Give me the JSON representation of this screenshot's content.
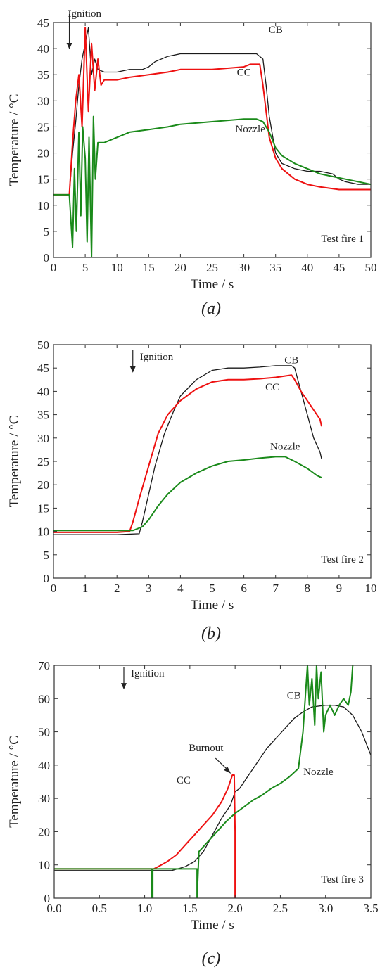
{
  "figure": {
    "captions": [
      "(a)",
      "(b)",
      "(c)"
    ]
  },
  "chart_data": [
    {
      "type": "line",
      "title": "",
      "xlabel": "Time / s",
      "ylabel": "Temperature / °C",
      "xlim": [
        0,
        50
      ],
      "ylim": [
        0,
        45
      ],
      "xticks": [
        0,
        5,
        10,
        15,
        20,
        25,
        30,
        35,
        40,
        45,
        50
      ],
      "yticks": [
        0,
        5,
        10,
        15,
        20,
        25,
        30,
        35,
        40,
        45
      ],
      "grid": false,
      "annotations": {
        "ignition": {
          "label": "Ignition",
          "x": 2.5,
          "y": 45
        },
        "test_fire": "Test fire 1"
      },
      "series": [
        {
          "name": "CB",
          "color": "#1a1a1a",
          "label_at": [
            35,
            43
          ],
          "x": [
            0,
            2.5,
            3,
            3.5,
            4,
            4.5,
            5,
            5.5,
            6,
            6.5,
            7,
            8,
            10,
            12,
            14,
            15,
            16,
            18,
            20,
            22,
            25,
            28,
            30,
            31,
            32,
            33,
            33.5,
            34,
            35,
            36,
            38,
            40,
            42,
            44,
            45,
            46,
            48,
            50
          ],
          "y": [
            12,
            12,
            20,
            26,
            33,
            38,
            41,
            44,
            35,
            38,
            36,
            35.5,
            35.5,
            36,
            36,
            36.5,
            37.5,
            38.5,
            39,
            39,
            39,
            39,
            39,
            39,
            39,
            38,
            33,
            27,
            20,
            18,
            17,
            16.5,
            16.5,
            16,
            15,
            14.5,
            14,
            14
          ]
        },
        {
          "name": "CC",
          "color": "#ee1111",
          "label_at": [
            30,
            34.8
          ],
          "x": [
            0,
            2.5,
            3,
            3.5,
            4,
            4.5,
            5,
            5.5,
            6,
            6.5,
            7,
            7.5,
            8,
            10,
            12,
            15,
            18,
            20,
            25,
            30,
            31,
            32,
            32.5,
            33,
            33.5,
            34,
            35,
            36,
            38,
            40,
            42,
            45,
            48,
            50
          ],
          "y": [
            12,
            12,
            22,
            30,
            35,
            25,
            44,
            28,
            41,
            32,
            38,
            33,
            34,
            34,
            34.5,
            35,
            35.5,
            36,
            36,
            36.5,
            37,
            37,
            37,
            33,
            28,
            23,
            19,
            17,
            15,
            14,
            13.5,
            13,
            13,
            13
          ]
        },
        {
          "name": "Nozzle",
          "color": "#1a8a1a",
          "label_at": [
            31,
            24
          ],
          "x": [
            0,
            2.5,
            3,
            3.3,
            3.6,
            4,
            4.3,
            4.6,
            5,
            5.3,
            5.6,
            6,
            6.3,
            6.6,
            7,
            8,
            10,
            12,
            15,
            18,
            20,
            25,
            30,
            32,
            33,
            34,
            35,
            36,
            38,
            40,
            42,
            44,
            46,
            48,
            50
          ],
          "y": [
            12,
            12,
            2,
            17,
            5,
            24,
            8,
            25,
            19,
            3,
            23,
            0,
            27,
            15,
            22,
            22,
            23,
            24,
            24.5,
            25,
            25.5,
            26,
            26.5,
            26.5,
            26,
            24,
            21,
            19.5,
            18,
            17,
            16,
            15.5,
            15,
            14.5,
            14
          ]
        }
      ]
    },
    {
      "type": "line",
      "title": "",
      "xlabel": "Time / s",
      "ylabel": "Temperature / °C",
      "xlim": [
        0,
        10
      ],
      "ylim": [
        0,
        50
      ],
      "xticks": [
        0,
        1,
        2,
        3,
        4,
        5,
        6,
        7,
        8,
        9,
        10
      ],
      "yticks": [
        0,
        5,
        10,
        15,
        20,
        25,
        30,
        35,
        40,
        45,
        50
      ],
      "grid": false,
      "annotations": {
        "ignition": {
          "label": "Ignition",
          "x": 2.5,
          "y": 47
        },
        "test_fire": "Test fire 2"
      },
      "series": [
        {
          "name": "CB",
          "color": "#1a1a1a",
          "label_at": [
            7.5,
            46
          ],
          "x": [
            0,
            1,
            2,
            2.7,
            2.8,
            3.0,
            3.2,
            3.5,
            3.8,
            4.0,
            4.5,
            5.0,
            5.5,
            6.0,
            6.5,
            7.0,
            7.5,
            7.6,
            7.8,
            8.0,
            8.2,
            8.4,
            8.45
          ],
          "y": [
            9.3,
            9.3,
            9.3,
            9.5,
            12,
            18,
            24,
            31,
            36,
            39,
            42.5,
            44.5,
            45,
            45,
            45.2,
            45.5,
            45.5,
            45,
            40,
            35,
            30,
            27,
            25.5
          ]
        },
        {
          "name": "CC",
          "color": "#ee1111",
          "label_at": [
            6.9,
            40.2
          ],
          "x": [
            0,
            1,
            2,
            2.4,
            2.5,
            2.7,
            3.0,
            3.3,
            3.6,
            4.0,
            4.5,
            5.0,
            5.5,
            6.0,
            6.5,
            7.0,
            7.5,
            7.6,
            7.8,
            8.0,
            8.2,
            8.4,
            8.45
          ],
          "y": [
            9.8,
            9.8,
            9.8,
            10,
            12,
            17,
            24,
            31,
            35,
            38,
            40.5,
            42,
            42.5,
            42.5,
            42.7,
            43,
            43.5,
            42.5,
            40,
            38,
            36,
            34,
            32.5
          ]
        },
        {
          "name": "Nozzle",
          "color": "#1a8a1a",
          "label_at": [
            7.3,
            27.5
          ],
          "x": [
            0,
            1,
            2,
            2.5,
            2.8,
            3.0,
            3.3,
            3.6,
            4.0,
            4.5,
            5.0,
            5.5,
            6.0,
            6.5,
            7.0,
            7.3,
            7.6,
            8.0,
            8.3,
            8.45
          ],
          "y": [
            10.2,
            10.2,
            10.2,
            10.2,
            11,
            12.5,
            15.5,
            18,
            20.5,
            22.5,
            24,
            25,
            25.3,
            25.7,
            26,
            26,
            25,
            23.5,
            22,
            21.5
          ]
        }
      ]
    },
    {
      "type": "line",
      "title": "",
      "xlabel": "Time / s",
      "ylabel": "Temperature / °C",
      "xlim": [
        0.0,
        3.5
      ],
      "ylim": [
        0,
        70
      ],
      "xticks": [
        0.0,
        0.5,
        1.0,
        1.5,
        2.0,
        2.5,
        3.0,
        3.5
      ],
      "xtick_labels": [
        "0.0",
        "0.5",
        "1.0",
        "1.5",
        "2.0",
        "2.5",
        "3.0",
        "3.5"
      ],
      "yticks": [
        0,
        10,
        20,
        30,
        40,
        50,
        60,
        70
      ],
      "grid": false,
      "annotations": {
        "ignition": {
          "label": "Ignition",
          "x": 0.77,
          "y": 67
        },
        "burnout": {
          "label": "Burnout",
          "x": 1.97,
          "y": 37
        },
        "test_fire": "Test fire 3"
      },
      "series": [
        {
          "name": "CB",
          "color": "#1a1a1a",
          "label_at": [
            2.65,
            60
          ],
          "x": [
            0,
            0.5,
            1.0,
            1.1,
            1.2,
            1.3,
            1.45,
            1.55,
            1.65,
            1.75,
            1.85,
            1.95,
            2.0,
            2.05,
            2.15,
            2.25,
            2.35,
            2.45,
            2.55,
            2.65,
            2.75,
            2.85,
            3.0,
            3.1,
            3.2,
            3.3,
            3.4,
            3.5
          ],
          "y": [
            8.3,
            8.3,
            8.3,
            8.3,
            8.3,
            8.3,
            9.5,
            11,
            14,
            19,
            24,
            28,
            32,
            33,
            37,
            41,
            45,
            48,
            51,
            54,
            56,
            57.5,
            58,
            58,
            57.5,
            55,
            50,
            43
          ]
        },
        {
          "name": "CC",
          "color": "#ee1111",
          "label_at": [
            1.43,
            34.5
          ],
          "x": [
            0,
            0.5,
            1.0,
            1.1,
            1.15,
            1.25,
            1.35,
            1.45,
            1.55,
            1.65,
            1.75,
            1.85,
            1.92,
            1.97,
            1.99,
            2.0,
            2.0
          ],
          "y": [
            8.8,
            8.8,
            8.8,
            8.8,
            9.5,
            11,
            13,
            16,
            19,
            22,
            25,
            29,
            33,
            37,
            37,
            20,
            0
          ]
        },
        {
          "name": "Nozzle",
          "color": "#1a8a1a",
          "label_at": [
            2.92,
            37
          ],
          "x": [
            0,
            0.5,
            1.0,
            1.08,
            1.08,
            1.09,
            1.09,
            1.5,
            1.58,
            1.58,
            1.6,
            1.7,
            1.8,
            1.9,
            2.0,
            2.1,
            2.2,
            2.3,
            2.4,
            2.5,
            2.6,
            2.7,
            2.75,
            2.78,
            2.8,
            2.82,
            2.85,
            2.88,
            2.9,
            2.92,
            2.95,
            2.98,
            3.0,
            3.05,
            3.1,
            3.15,
            3.2,
            3.25,
            3.28,
            3.3
          ],
          "y": [
            8.8,
            8.8,
            8.8,
            8.8,
            0,
            0,
            8.8,
            8.8,
            8.8,
            0,
            14,
            17,
            20,
            23,
            25.5,
            27.5,
            29.5,
            31,
            33,
            34.5,
            36.5,
            39,
            50,
            62,
            70,
            58,
            66,
            52,
            70,
            60,
            68,
            50,
            55,
            58,
            55,
            58,
            60,
            58,
            62,
            70
          ]
        }
      ]
    }
  ]
}
